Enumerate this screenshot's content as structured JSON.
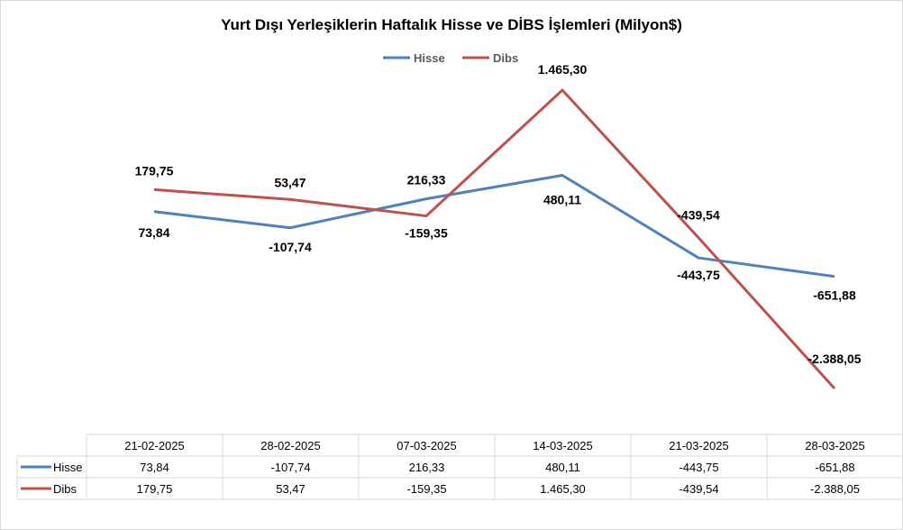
{
  "chart_data": {
    "type": "line",
    "title": "Yurt Dışı Yerleşiklerin Haftalık Hisse ve DİBS İşlemleri (Milyon$)",
    "categories": [
      "21-02-2025",
      "28-02-2025",
      "07-03-2025",
      "14-03-2025",
      "21-03-2025",
      "28-03-2025"
    ],
    "series": [
      {
        "name": "Hisse",
        "color": "#4f81bd",
        "values": [
          73.84,
          -107.74,
          216.33,
          480.11,
          -443.75,
          -651.88
        ],
        "labels": [
          "73,84",
          "-107,74",
          "216,33",
          "480,11",
          "-443,75",
          "-651,88"
        ]
      },
      {
        "name": "Dibs",
        "color": "#c0504d",
        "values": [
          179.75,
          53.47,
          -159.35,
          1465.3,
          -439.54,
          -2388.05
        ],
        "labels": [
          "179,75",
          "53,47",
          "-159,35",
          "1.465,30",
          "-439,54",
          "-2.388,05"
        ]
      }
    ],
    "legend": "top-center",
    "data_table": true,
    "grid": false
  }
}
